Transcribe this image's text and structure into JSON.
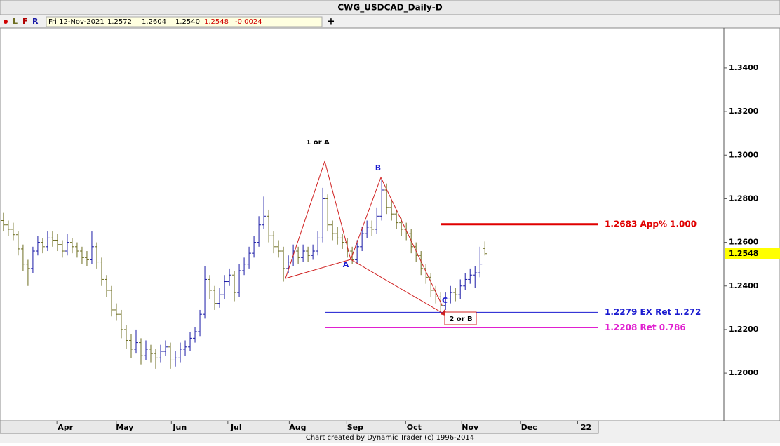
{
  "chart_data": {
    "type": "ohlc",
    "title": "CWG_USDCAD_Daily-D",
    "open": [
      1.27,
      1.268,
      1.266,
      1.2635,
      1.257,
      1.25,
      1.248,
      1.256,
      1.26,
      1.258,
      1.262,
      1.261,
      1.259,
      1.256,
      1.26,
      1.258,
      1.256,
      1.253,
      1.252,
      1.258,
      1.251,
      1.243,
      1.238,
      1.229,
      1.227,
      1.22,
      1.215,
      1.211,
      1.214,
      1.208,
      1.211,
      1.209,
      1.207,
      1.21,
      1.212,
      1.206,
      1.207,
      1.211,
      1.212,
      1.216,
      1.219,
      1.227,
      1.243,
      1.238,
      1.232,
      1.236,
      1.242,
      1.245,
      1.237,
      1.247,
      1.25,
      1.255,
      1.26,
      1.268,
      1.272,
      1.263,
      1.258,
      1.256,
      1.248,
      1.251,
      1.256,
      1.253,
      1.256,
      1.254,
      1.256,
      1.262,
      1.28,
      1.268,
      1.264,
      1.262,
      1.26,
      1.256,
      1.252,
      1.258,
      1.264,
      1.267,
      1.266,
      1.272,
      1.284,
      1.276,
      1.273,
      1.269,
      1.266,
      1.264,
      1.258,
      1.254,
      1.248,
      1.244,
      1.238,
      1.235,
      1.231,
      1.234,
      1.237,
      1.236,
      1.24,
      1.243,
      1.245,
      1.246,
      1.2572
    ],
    "high": [
      1.2735,
      1.27,
      1.269,
      1.265,
      1.259,
      1.252,
      1.258,
      1.263,
      1.262,
      1.265,
      1.265,
      1.264,
      1.261,
      1.264,
      1.262,
      1.26,
      1.258,
      1.256,
      1.265,
      1.26,
      1.253,
      1.245,
      1.24,
      1.232,
      1.229,
      1.222,
      1.218,
      1.22,
      1.216,
      1.215,
      1.213,
      1.211,
      1.213,
      1.215,
      1.214,
      1.21,
      1.214,
      1.215,
      1.219,
      1.221,
      1.229,
      1.249,
      1.245,
      1.24,
      1.239,
      1.245,
      1.248,
      1.247,
      1.25,
      1.253,
      1.258,
      1.263,
      1.272,
      1.281,
      1.275,
      1.265,
      1.261,
      1.258,
      1.254,
      1.259,
      1.258,
      1.259,
      1.258,
      1.259,
      1.265,
      1.285,
      1.282,
      1.27,
      1.267,
      1.264,
      1.262,
      1.258,
      1.261,
      1.267,
      1.27,
      1.27,
      1.276,
      1.289,
      1.287,
      1.279,
      1.275,
      1.271,
      1.269,
      1.266,
      1.26,
      1.256,
      1.25,
      1.246,
      1.24,
      1.237,
      1.237,
      1.24,
      1.239,
      1.243,
      1.246,
      1.248,
      1.249,
      1.258,
      1.2604
    ],
    "low": [
      1.265,
      1.263,
      1.261,
      1.254,
      1.247,
      1.24,
      1.246,
      1.254,
      1.255,
      1.256,
      1.258,
      1.256,
      1.253,
      1.254,
      1.255,
      1.253,
      1.25,
      1.249,
      1.25,
      1.248,
      1.24,
      1.235,
      1.226,
      1.224,
      1.216,
      1.211,
      1.207,
      1.209,
      1.204,
      1.206,
      1.205,
      1.202,
      1.205,
      1.208,
      1.202,
      1.203,
      1.205,
      1.208,
      1.21,
      1.214,
      1.217,
      1.225,
      1.234,
      1.229,
      1.23,
      1.234,
      1.24,
      1.233,
      1.235,
      1.245,
      1.248,
      1.253,
      1.258,
      1.266,
      1.26,
      1.255,
      1.253,
      1.242,
      1.246,
      1.249,
      1.25,
      1.251,
      1.251,
      1.252,
      1.254,
      1.26,
      1.265,
      1.261,
      1.259,
      1.257,
      1.253,
      1.25,
      1.25,
      1.256,
      1.262,
      1.263,
      1.264,
      1.27,
      1.273,
      1.27,
      1.266,
      1.263,
      1.261,
      1.255,
      1.251,
      1.245,
      1.241,
      1.235,
      1.232,
      1.2285,
      1.229,
      1.232,
      1.233,
      1.234,
      1.238,
      1.241,
      1.239,
      1.244,
      1.254
    ],
    "close": [
      1.268,
      1.266,
      1.2635,
      1.257,
      1.25,
      1.248,
      1.256,
      1.26,
      1.258,
      1.262,
      1.261,
      1.259,
      1.256,
      1.26,
      1.258,
      1.256,
      1.253,
      1.252,
      1.258,
      1.251,
      1.243,
      1.238,
      1.229,
      1.227,
      1.22,
      1.215,
      1.211,
      1.214,
      1.208,
      1.211,
      1.209,
      1.207,
      1.21,
      1.212,
      1.206,
      1.207,
      1.211,
      1.212,
      1.216,
      1.219,
      1.227,
      1.243,
      1.238,
      1.232,
      1.236,
      1.242,
      1.245,
      1.237,
      1.247,
      1.25,
      1.255,
      1.26,
      1.268,
      1.272,
      1.263,
      1.258,
      1.256,
      1.248,
      1.251,
      1.256,
      1.253,
      1.256,
      1.254,
      1.256,
      1.262,
      1.28,
      1.268,
      1.264,
      1.262,
      1.26,
      1.256,
      1.252,
      1.258,
      1.264,
      1.267,
      1.266,
      1.272,
      1.284,
      1.276,
      1.273,
      1.269,
      1.266,
      1.264,
      1.258,
      1.254,
      1.248,
      1.244,
      1.238,
      1.235,
      1.231,
      1.234,
      1.237,
      1.236,
      1.24,
      1.243,
      1.245,
      1.246,
      1.25,
      1.2548
    ],
    "up_color": "#1a1aa6",
    "down_color": "#6e6e22",
    "xlim": [
      -0.7,
      121.1
    ],
    "xticks": [
      {
        "value": 12.6,
        "label": "Apr"
      },
      {
        "value": 24.7,
        "label": "May"
      },
      {
        "value": 35.9,
        "label": "Jun"
      },
      {
        "value": 47.4,
        "label": "Jul"
      },
      {
        "value": 59.9,
        "label": "Aug"
      },
      {
        "value": 71.6,
        "label": "Sep"
      },
      {
        "value": 83.6,
        "label": "Oct"
      },
      {
        "value": 95.0,
        "label": "Nov"
      },
      {
        "value": 107.0,
        "label": "Dec"
      },
      {
        "value": 118.6,
        "label": "22"
      }
    ],
    "ylim": [
      1.1788,
      1.3567
    ],
    "yticks": [
      {
        "value": 1.2,
        "label": "1.2000"
      },
      {
        "value": 1.22,
        "label": "1.2200"
      },
      {
        "value": 1.24,
        "label": "1.2400"
      },
      {
        "value": 1.26,
        "label": "1.2600"
      },
      {
        "value": 1.28,
        "label": "1.2800"
      },
      {
        "value": 1.3,
        "label": "1.3000"
      },
      {
        "value": 1.32,
        "label": "1.3200"
      },
      {
        "value": 1.34,
        "label": "1.3400"
      }
    ],
    "levels": [
      {
        "value": 1.2683,
        "label": "1.2683 App% 1.000",
        "color": "#e00000"
      },
      {
        "value": 1.2279,
        "label": "1.2279 EX Ret 1.272",
        "color": "#1a1ad0"
      },
      {
        "value": 1.2208,
        "label": "1.2208 Ret 0.786",
        "color": "#e020d0"
      }
    ],
    "last_price": {
      "value": 1.2548,
      "label": "1.2548",
      "color": "#ffff00"
    }
  },
  "toolbar": {
    "buttons": [
      "L",
      "F",
      "R"
    ],
    "date": "Fri 12-Nov-2021",
    "open": "1.2572",
    "high": "1.2604",
    "low": "1.2540",
    "close": "1.2548",
    "change": "-0.0024",
    "plus": "+"
  },
  "annotations": {
    "wave1": "1 or A",
    "pointA": "A",
    "pointB": "B",
    "pointC": "C",
    "target": "2 or B"
  },
  "footer": "Chart created by Dynamic Trader  (c) 1996-2014"
}
